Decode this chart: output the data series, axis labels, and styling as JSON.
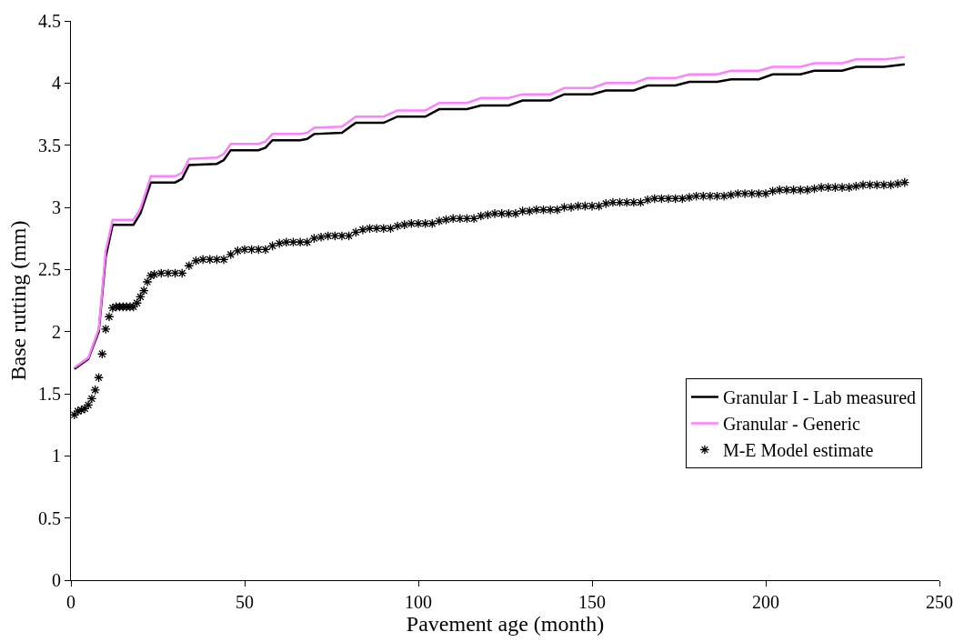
{
  "chart_data": {
    "type": "line",
    "xlabel": "Pavement age (month)",
    "ylabel": "Base rutting (mm)",
    "xlim": [
      0,
      250
    ],
    "xticks": [
      0,
      50,
      100,
      150,
      200,
      250
    ],
    "ylim": [
      0,
      4.5
    ],
    "yticks": [
      0,
      0.5,
      1,
      1.5,
      2,
      2.5,
      3,
      3.5,
      4,
      4.5
    ],
    "grid": false,
    "legend": "bottom right",
    "series": [
      {
        "name": "Granular I - Lab measured",
        "color": "#000000",
        "marker": "none",
        "line_style": "solid",
        "x": [
          1,
          5,
          8,
          10,
          12,
          18,
          20,
          23,
          30,
          32,
          34,
          42,
          44,
          46,
          54,
          56,
          58,
          66,
          68,
          70,
          78,
          82,
          90,
          94,
          102,
          106,
          114,
          118,
          126,
          130,
          138,
          142,
          150,
          154,
          162,
          166,
          174,
          178,
          186,
          190,
          198,
          202,
          210,
          214,
          222,
          226,
          234,
          240
        ],
        "values": [
          1.7,
          1.78,
          2.0,
          2.6,
          2.86,
          2.86,
          2.95,
          3.2,
          3.2,
          3.23,
          3.34,
          3.35,
          3.38,
          3.46,
          3.46,
          3.48,
          3.54,
          3.54,
          3.55,
          3.59,
          3.6,
          3.68,
          3.68,
          3.73,
          3.73,
          3.79,
          3.79,
          3.82,
          3.82,
          3.86,
          3.86,
          3.91,
          3.91,
          3.94,
          3.94,
          3.98,
          3.98,
          4.01,
          4.01,
          4.03,
          4.03,
          4.07,
          4.07,
          4.1,
          4.1,
          4.13,
          4.13,
          4.15
        ]
      },
      {
        "name": "Granular - Generic",
        "color": "#ff80ff",
        "marker": "none",
        "line_style": "solid",
        "x": [
          1,
          5,
          8,
          10,
          12,
          18,
          20,
          23,
          30,
          32,
          34,
          42,
          44,
          46,
          54,
          56,
          58,
          66,
          68,
          70,
          78,
          82,
          90,
          94,
          102,
          106,
          114,
          118,
          126,
          130,
          138,
          142,
          150,
          154,
          162,
          166,
          174,
          178,
          186,
          190,
          198,
          202,
          210,
          214,
          222,
          226,
          234,
          240
        ],
        "values": [
          1.71,
          1.79,
          2.02,
          2.65,
          2.9,
          2.9,
          2.99,
          3.25,
          3.25,
          3.28,
          3.39,
          3.4,
          3.43,
          3.51,
          3.51,
          3.53,
          3.59,
          3.59,
          3.6,
          3.64,
          3.65,
          3.73,
          3.73,
          3.78,
          3.78,
          3.84,
          3.84,
          3.88,
          3.88,
          3.91,
          3.91,
          3.96,
          3.96,
          4.0,
          4.0,
          4.04,
          4.04,
          4.07,
          4.07,
          4.1,
          4.1,
          4.13,
          4.13,
          4.16,
          4.16,
          4.19,
          4.19,
          4.21
        ]
      },
      {
        "name": "M-E Model estimate",
        "color": "#000000",
        "type": "scatter",
        "marker": "cross",
        "x": [
          1,
          2,
          3,
          4,
          5,
          6,
          7,
          8,
          9,
          10,
          11,
          12,
          13,
          14,
          15,
          16,
          17,
          18,
          19,
          20,
          21,
          22,
          23,
          24,
          26,
          28,
          30,
          32,
          34,
          36,
          38,
          40,
          42,
          44,
          46,
          48,
          50,
          52,
          54,
          56,
          58,
          60,
          62,
          64,
          66,
          68,
          70,
          72,
          74,
          76,
          78,
          80,
          82,
          84,
          86,
          88,
          90,
          92,
          94,
          96,
          98,
          100,
          102,
          104,
          106,
          108,
          110,
          112,
          114,
          116,
          118,
          120,
          122,
          124,
          126,
          128,
          130,
          132,
          134,
          136,
          138,
          140,
          142,
          144,
          146,
          148,
          150,
          152,
          154,
          156,
          158,
          160,
          162,
          164,
          166,
          168,
          170,
          172,
          174,
          176,
          178,
          180,
          182,
          184,
          186,
          188,
          190,
          192,
          194,
          196,
          198,
          200,
          202,
          204,
          206,
          208,
          210,
          212,
          214,
          216,
          218,
          220,
          222,
          224,
          226,
          228,
          230,
          232,
          234,
          236,
          238,
          240
        ],
        "values": [
          1.33,
          1.36,
          1.37,
          1.38,
          1.41,
          1.46,
          1.53,
          1.63,
          1.82,
          2.02,
          2.12,
          2.19,
          2.2,
          2.2,
          2.2,
          2.2,
          2.2,
          2.2,
          2.23,
          2.28,
          2.33,
          2.4,
          2.45,
          2.46,
          2.47,
          2.47,
          2.47,
          2.47,
          2.53,
          2.57,
          2.58,
          2.58,
          2.58,
          2.58,
          2.62,
          2.65,
          2.66,
          2.66,
          2.66,
          2.66,
          2.69,
          2.71,
          2.72,
          2.72,
          2.72,
          2.72,
          2.75,
          2.76,
          2.77,
          2.77,
          2.77,
          2.77,
          2.8,
          2.82,
          2.83,
          2.83,
          2.83,
          2.83,
          2.85,
          2.86,
          2.87,
          2.87,
          2.87,
          2.87,
          2.89,
          2.9,
          2.91,
          2.91,
          2.91,
          2.91,
          2.93,
          2.94,
          2.95,
          2.95,
          2.95,
          2.95,
          2.97,
          2.97,
          2.98,
          2.98,
          2.98,
          2.98,
          3.0,
          3.0,
          3.01,
          3.01,
          3.01,
          3.01,
          3.03,
          3.04,
          3.04,
          3.04,
          3.04,
          3.04,
          3.06,
          3.07,
          3.07,
          3.07,
          3.07,
          3.07,
          3.08,
          3.09,
          3.09,
          3.09,
          3.09,
          3.09,
          3.1,
          3.11,
          3.11,
          3.11,
          3.11,
          3.11,
          3.13,
          3.14,
          3.14,
          3.14,
          3.14,
          3.14,
          3.15,
          3.16,
          3.16,
          3.16,
          3.16,
          3.16,
          3.17,
          3.18,
          3.18,
          3.18,
          3.18,
          3.18,
          3.19,
          3.2
        ]
      }
    ]
  }
}
